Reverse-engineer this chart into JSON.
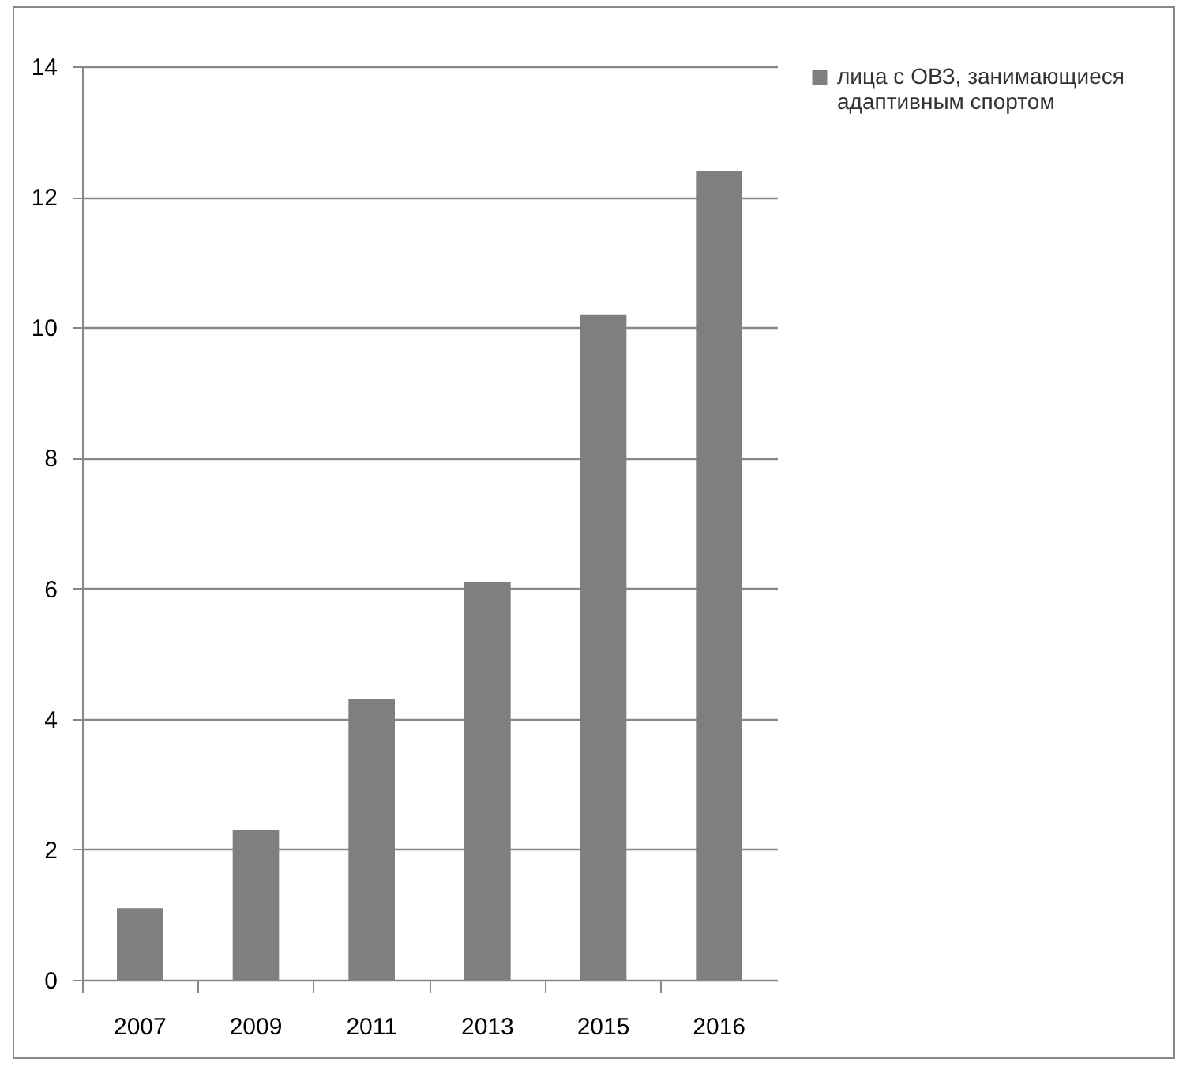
{
  "chart_data": {
    "type": "bar",
    "categories": [
      "2007",
      "2009",
      "2011",
      "2013",
      "2015",
      "2016"
    ],
    "series": [
      {
        "name": "лица с ОВЗ, занимающиеся адаптивным спортом",
        "color": "#7f7f7f",
        "values": [
          1.1,
          2.3,
          4.3,
          6.1,
          10.2,
          12.4
        ]
      }
    ],
    "ylim": [
      0,
      14
    ],
    "yticks": [
      0,
      2,
      4,
      6,
      8,
      10,
      12,
      14
    ],
    "grid": "y",
    "legend": "right"
  }
}
